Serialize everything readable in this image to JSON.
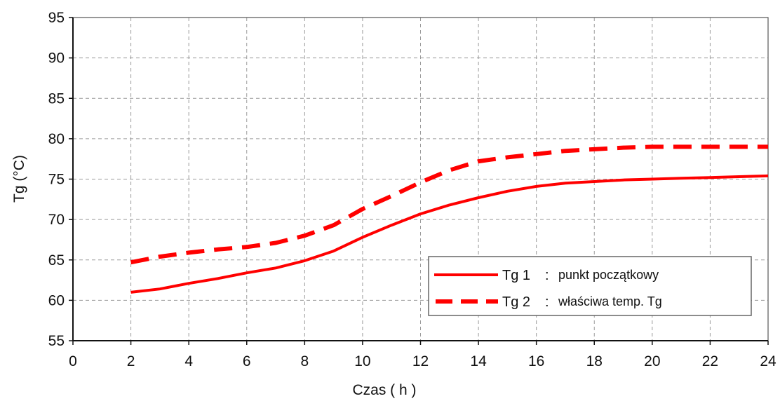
{
  "chart_data": {
    "type": "line",
    "xlabel": "Czas ( h )",
    "ylabel": "Tg (°C)",
    "xlim": [
      0,
      24
    ],
    "ylim": [
      55,
      95
    ],
    "xticks": [
      0,
      2,
      4,
      6,
      8,
      10,
      12,
      14,
      16,
      18,
      20,
      22,
      24
    ],
    "yticks": [
      55,
      60,
      65,
      70,
      75,
      80,
      85,
      90,
      95
    ],
    "grid": true,
    "legend_position": "bottom-right",
    "series": [
      {
        "name": "Tg 1",
        "description": "punkt początkowy",
        "color": "#ff0000",
        "line_style": "solid",
        "x": [
          2,
          3,
          4,
          5,
          6,
          7,
          8,
          9,
          10,
          11,
          12,
          13,
          14,
          15,
          16,
          17,
          18,
          19,
          20,
          21,
          22,
          23,
          24
        ],
        "y": [
          61.0,
          61.4,
          62.1,
          62.7,
          63.4,
          64.0,
          64.9,
          66.1,
          67.8,
          69.3,
          70.7,
          71.8,
          72.7,
          73.5,
          74.1,
          74.5,
          74.7,
          74.9,
          75.0,
          75.1,
          75.2,
          75.3,
          75.4
        ]
      },
      {
        "name": "Tg 2",
        "description": "właściwa temp. Tg",
        "color": "#ff0000",
        "line_style": "dashed",
        "x": [
          2,
          3,
          4,
          5,
          6,
          7,
          8,
          9,
          10,
          11,
          12,
          13,
          14,
          15,
          16,
          17,
          18,
          19,
          20,
          21,
          22,
          23,
          24
        ],
        "y": [
          64.7,
          65.4,
          65.9,
          66.3,
          66.6,
          67.1,
          68.0,
          69.3,
          71.3,
          72.9,
          74.6,
          76.1,
          77.2,
          77.7,
          78.1,
          78.5,
          78.7,
          78.9,
          79.0,
          79.0,
          79.0,
          79.0,
          79.0
        ]
      }
    ]
  }
}
